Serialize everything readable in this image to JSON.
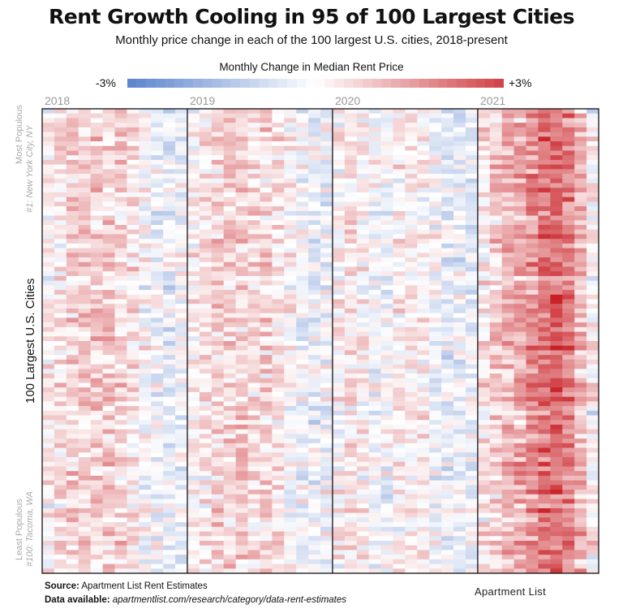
{
  "title": "Rent Growth Cooling in 95 of 100 Largest Cities",
  "subtitle": "Monthly price change in each of the 100 largest U.S. cities, 2018-present",
  "legend": {
    "title": "Monthly Change in Median Rent Price",
    "min_label": "-3%",
    "max_label": "+3%",
    "colors": {
      "negative": "#3d6cc4",
      "neutral": "#ffffff",
      "positive": "#c81e24"
    }
  },
  "years": [
    "2018",
    "2019",
    "2020",
    "2021"
  ],
  "y_axis": {
    "label": "100 Largest U.S. Cities",
    "top_label": "Most Populous",
    "top_city": "#1: New York City, NY",
    "bottom_label": "Least Populous",
    "bottom_city": "#100: Tacoma, WA"
  },
  "footer": {
    "source_label": "Source:",
    "source": "Apartment List Rent Estimates",
    "data_label": "Data available:",
    "data_url": "apartmentlist.com/research/category/data-rent-estimates",
    "logo": "Apartment List"
  },
  "chart_data": {
    "type": "heatmap",
    "title": "Rent Growth Cooling in 95 of 100 Largest Cities",
    "rows": 100,
    "value_range": [
      -3,
      3
    ],
    "unit": "% monthly change",
    "column_years": [
      "2018",
      "2018",
      "2018",
      "2018",
      "2018",
      "2018",
      "2018",
      "2018",
      "2018",
      "2018",
      "2018",
      "2018",
      "2019",
      "2019",
      "2019",
      "2019",
      "2019",
      "2019",
      "2019",
      "2019",
      "2019",
      "2019",
      "2019",
      "2019",
      "2020",
      "2020",
      "2020",
      "2020",
      "2020",
      "2020",
      "2020",
      "2020",
      "2020",
      "2020",
      "2020",
      "2020",
      "2021",
      "2021",
      "2021",
      "2021",
      "2021",
      "2021",
      "2021",
      "2021",
      "2021",
      "2021"
    ],
    "column_average_values": [
      0.2,
      0.3,
      0.6,
      0.6,
      0.6,
      0.6,
      0.5,
      0.3,
      0.0,
      -0.2,
      -0.3,
      -0.2,
      0.1,
      0.3,
      0.5,
      0.6,
      0.6,
      0.5,
      0.5,
      0.3,
      0.0,
      -0.2,
      -0.3,
      -0.2,
      0.1,
      0.3,
      0.2,
      -0.2,
      -0.1,
      0.2,
      0.3,
      0.1,
      -0.2,
      -0.3,
      -0.3,
      -0.3,
      0.3,
      0.6,
      0.9,
      1.1,
      1.4,
      1.8,
      1.9,
      1.6,
      0.9,
      0.1
    ]
  }
}
